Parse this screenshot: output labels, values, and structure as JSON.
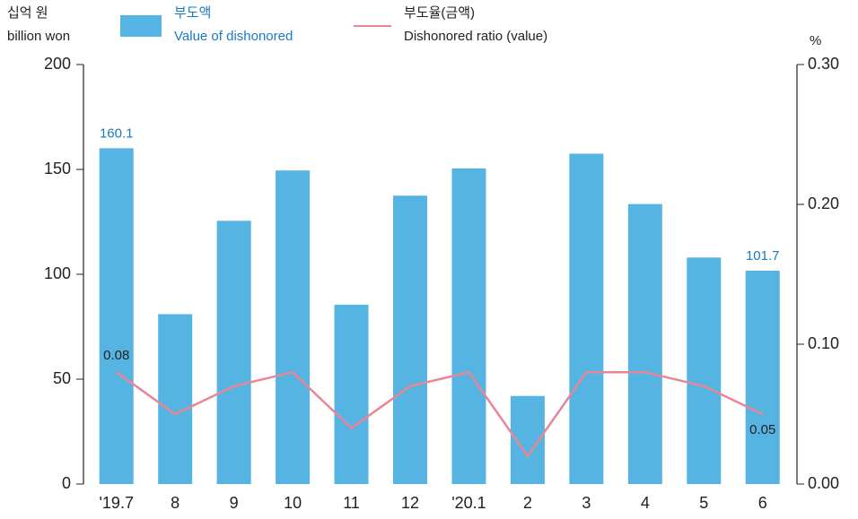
{
  "chart_data": {
    "type": "bar_line",
    "y_label": [
      "십억 원",
      "billion won"
    ],
    "y2_label": "%",
    "categories": [
      "'19.7",
      "8",
      "9",
      "10",
      "11",
      "12",
      "'20.1",
      "2",
      "3",
      "4",
      "5",
      "6"
    ],
    "series": [
      {
        "name": "부도액",
        "name_en": "Value of dishonored",
        "type": "bar",
        "color": "#56b4e3",
        "label_color": "#1a7abf",
        "values": [
          160.1,
          81,
          125.5,
          149.5,
          85.5,
          137.5,
          150.5,
          42,
          157.5,
          133.5,
          108,
          101.7
        ],
        "value_labels": [
          "160.1",
          null,
          null,
          null,
          null,
          null,
          null,
          null,
          null,
          null,
          null,
          "101.7"
        ]
      },
      {
        "name": "부도율(금액)",
        "name_en": "Dishonored ratio (value)",
        "type": "line",
        "axis": "y2",
        "color": "#ea8594",
        "label_color": "#222222",
        "values": [
          0.08,
          0.05,
          0.07,
          0.08,
          0.04,
          0.07,
          0.08,
          0.02,
          0.08,
          0.08,
          0.07,
          0.05
        ],
        "value_labels": [
          "0.08",
          null,
          null,
          null,
          null,
          null,
          null,
          null,
          null,
          null,
          null,
          "0.05"
        ]
      }
    ],
    "ylim": [
      0,
      200
    ],
    "yticks": [
      0,
      50,
      100,
      150,
      200
    ],
    "y2lim": [
      0,
      0.3
    ],
    "y2ticks": [
      {
        "value": 0,
        "label": "0.00"
      },
      {
        "value": 0.1,
        "label": "0.10"
      },
      {
        "value": 0.2,
        "label": "0.20"
      },
      {
        "value": 0.3,
        "label": "0.30"
      }
    ]
  }
}
